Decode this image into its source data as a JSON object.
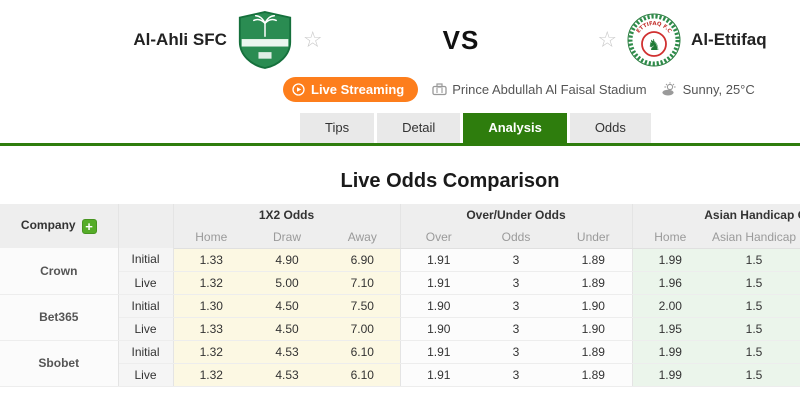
{
  "header": {
    "home_team": {
      "name": "Al-Ahli SFC"
    },
    "away_team": {
      "name": "Al-Ettifaq",
      "badge_text": "ETTIFAQ F.C"
    },
    "vs_label": "VS",
    "live_streaming_label": "Live Streaming",
    "stadium_name": "Prince Abdullah Al Faisal Stadium",
    "weather": "Sunny, 25°C"
  },
  "tabs": [
    {
      "label": "Tips",
      "active": false
    },
    {
      "label": "Detail",
      "active": false
    },
    {
      "label": "Analysis",
      "active": true
    },
    {
      "label": "Odds",
      "active": false
    }
  ],
  "analysis": {
    "title": "Live Odds Comparison"
  },
  "odds_table": {
    "company_header": "Company",
    "add_company_label": "+",
    "groups": [
      {
        "label": "1X2 Odds",
        "columns": [
          "Home",
          "Draw",
          "Away"
        ]
      },
      {
        "label": "Over/Under Odds",
        "columns": [
          "Over",
          "Odds",
          "Under"
        ]
      },
      {
        "label": "Asian Handicap Odds",
        "columns": [
          "Home",
          "Asian Handicap"
        ]
      }
    ],
    "companies": [
      {
        "name": "Crown",
        "rows": [
          {
            "type": "Initial",
            "x12": [
              "1.33",
              "4.90",
              "6.90"
            ],
            "over_under": [
              "1.91",
              "3",
              "1.89"
            ],
            "asian_handicap": [
              "1.99",
              "1.5"
            ]
          },
          {
            "type": "Live",
            "x12": [
              "1.32",
              "5.00",
              "7.10"
            ],
            "over_under": [
              "1.91",
              "3",
              "1.89"
            ],
            "asian_handicap": [
              "1.96",
              "1.5"
            ]
          }
        ]
      },
      {
        "name": "Bet365",
        "rows": [
          {
            "type": "Initial",
            "x12": [
              "1.30",
              "4.50",
              "7.50"
            ],
            "over_under": [
              "1.90",
              "3",
              "1.90"
            ],
            "asian_handicap": [
              "2.00",
              "1.5"
            ]
          },
          {
            "type": "Live",
            "x12": [
              "1.33",
              "4.50",
              "7.00"
            ],
            "over_under": [
              "1.90",
              "3",
              "1.90"
            ],
            "asian_handicap": [
              "1.95",
              "1.5"
            ]
          }
        ]
      },
      {
        "name": "Sbobet",
        "rows": [
          {
            "type": "Initial",
            "x12": [
              "1.32",
              "4.53",
              "6.10"
            ],
            "over_under": [
              "1.91",
              "3",
              "1.89"
            ],
            "asian_handicap": [
              "1.99",
              "1.5"
            ]
          },
          {
            "type": "Live",
            "x12": [
              "1.32",
              "4.53",
              "6.10"
            ],
            "over_under": [
              "1.91",
              "3",
              "1.89"
            ],
            "asian_handicap": [
              "1.99",
              "1.5"
            ]
          }
        ]
      }
    ]
  },
  "colors": {
    "accent_green": "#2e7d0d",
    "streaming_orange": "#fd7e1c",
    "cell_1x2_bg": "#fcf8e3",
    "cell_asian_handicap_bg": "#ebf5eb",
    "badge_green": "#2a8c52",
    "badge_red": "#c4322e",
    "header_gray": "#eeeeee"
  }
}
